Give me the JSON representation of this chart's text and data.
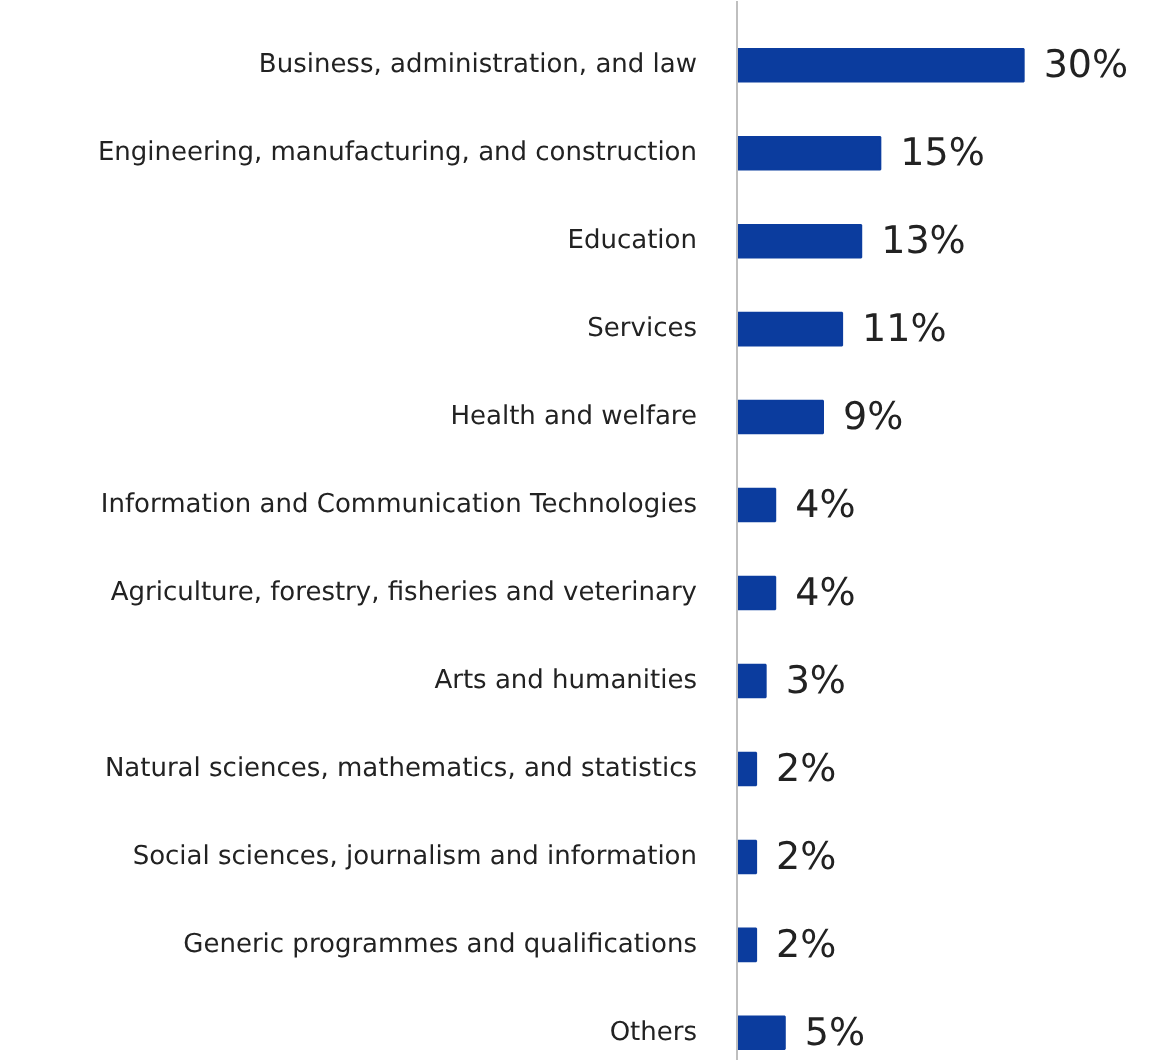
{
  "chart_data": {
    "type": "bar",
    "orientation": "horizontal",
    "categories": [
      "Business, administration, and law",
      "Engineering, manufacturing, and construction",
      "Education",
      "Services",
      "Health and welfare",
      "Information and Communication Technologies",
      "Agriculture, forestry, fisheries and veterinary",
      "Arts and humanities",
      "Natural sciences, mathematics, and statistics",
      "Social sciences, journalism and information",
      "Generic programmes and qualifications",
      "Others"
    ],
    "values": [
      30,
      15,
      13,
      11,
      9,
      4,
      4,
      3,
      2,
      2,
      2,
      5
    ],
    "value_labels": [
      "30%",
      "15%",
      "13%",
      "11%",
      "9%",
      "4%",
      "4%",
      "3%",
      "2%",
      "2%",
      "2%",
      "5%"
    ],
    "color": "#0b3c9e"
  }
}
